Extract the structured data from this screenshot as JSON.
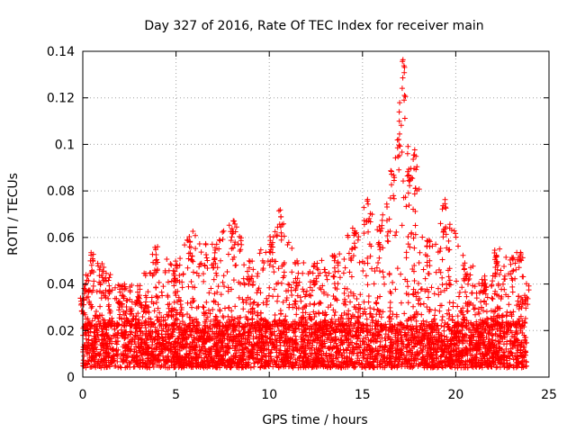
{
  "chart_data": {
    "type": "scatter",
    "title": "Day 327 of 2016, Rate Of TEC Index for receiver main",
    "xlabel": "GPS time / hours",
    "ylabel": "ROTI / TECUs",
    "xlim": [
      0,
      25
    ],
    "ylim": [
      0,
      0.14
    ],
    "x_ticks": [
      0,
      5,
      10,
      15,
      20,
      25
    ],
    "x_tick_labels": [
      "0",
      "5",
      "10",
      "15",
      "20",
      "25"
    ],
    "y_ticks": [
      0,
      0.02,
      0.04,
      0.06,
      0.08,
      0.1,
      0.12,
      0.14
    ],
    "y_tick_labels": [
      "0",
      "0.02",
      "0.04",
      "0.06",
      "0.08",
      "0.1",
      "0.12",
      "0.14"
    ],
    "grid": true,
    "marker": "+",
    "series_color": "#ff0000",
    "envelope": [
      {
        "x": 0.0,
        "y_max": 0.035
      },
      {
        "x": 0.2,
        "y_max": 0.045
      },
      {
        "x": 0.5,
        "y_max": 0.055
      },
      {
        "x": 1.0,
        "y_max": 0.05
      },
      {
        "x": 2.0,
        "y_max": 0.04
      },
      {
        "x": 3.0,
        "y_max": 0.04
      },
      {
        "x": 3.9,
        "y_max": 0.057
      },
      {
        "x": 5.0,
        "y_max": 0.05
      },
      {
        "x": 5.8,
        "y_max": 0.063
      },
      {
        "x": 7.0,
        "y_max": 0.059
      },
      {
        "x": 8.1,
        "y_max": 0.068
      },
      {
        "x": 9.0,
        "y_max": 0.05
      },
      {
        "x": 10.1,
        "y_max": 0.061
      },
      {
        "x": 10.6,
        "y_max": 0.072
      },
      {
        "x": 11.5,
        "y_max": 0.05
      },
      {
        "x": 12.5,
        "y_max": 0.05
      },
      {
        "x": 13.5,
        "y_max": 0.055
      },
      {
        "x": 14.5,
        "y_max": 0.065
      },
      {
        "x": 15.2,
        "y_max": 0.077
      },
      {
        "x": 16.0,
        "y_max": 0.07
      },
      {
        "x": 16.6,
        "y_max": 0.09
      },
      {
        "x": 17.0,
        "y_max": 0.12
      },
      {
        "x": 17.2,
        "y_max": 0.14
      },
      {
        "x": 17.5,
        "y_max": 0.09
      },
      {
        "x": 17.8,
        "y_max": 0.098
      },
      {
        "x": 18.5,
        "y_max": 0.06
      },
      {
        "x": 19.4,
        "y_max": 0.078
      },
      {
        "x": 20.5,
        "y_max": 0.05
      },
      {
        "x": 21.5,
        "y_max": 0.045
      },
      {
        "x": 22.2,
        "y_max": 0.056
      },
      {
        "x": 23.0,
        "y_max": 0.052
      },
      {
        "x": 23.5,
        "y_max": 0.055
      },
      {
        "x": 23.8,
        "y_max": 0.04
      }
    ],
    "baseline_band": [
      0.004,
      0.022
    ]
  }
}
